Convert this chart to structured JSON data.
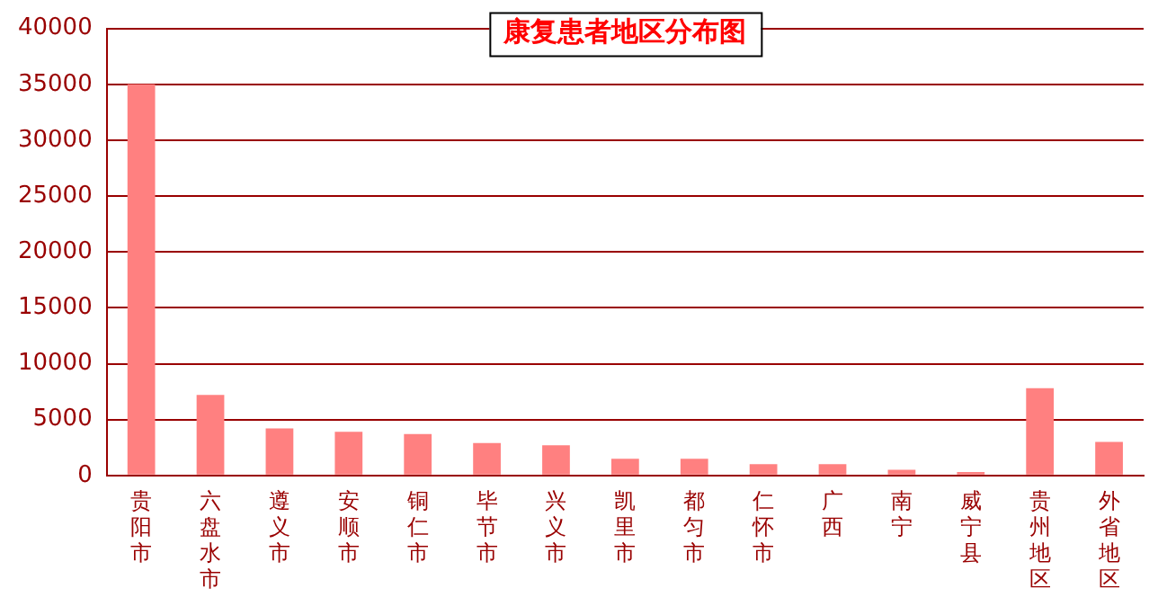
{
  "chart_data": {
    "type": "bar",
    "title": "康复患者地区分布图",
    "categories": [
      "贵阳市",
      "六盘水市",
      "遵义市",
      "安顺市",
      "铜仁市",
      "毕节市",
      "兴义市",
      "凯里市",
      "都匀市",
      "仁怀市",
      "广西",
      "南宁",
      "威宁县",
      "贵州地区",
      "外省地区"
    ],
    "values": [
      35000,
      7200,
      4200,
      3900,
      3700,
      2900,
      2700,
      1500,
      1500,
      1000,
      1000,
      500,
      300,
      7800,
      3000
    ],
    "color": "#ff8080",
    "ylim": [
      0,
      40000
    ],
    "yticks": [
      0,
      5000,
      10000,
      15000,
      20000,
      25000,
      30000,
      35000,
      40000
    ],
    "grid": "y"
  }
}
